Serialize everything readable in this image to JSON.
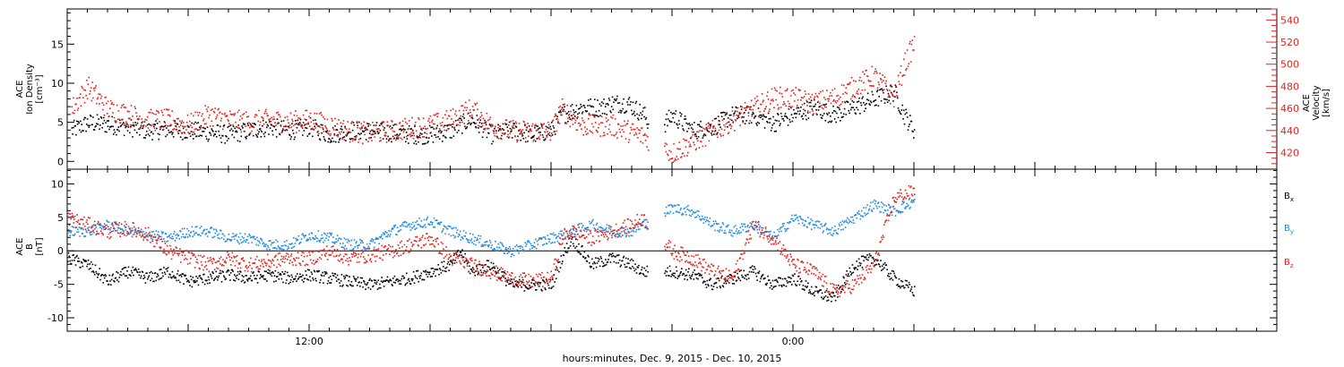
{
  "xlabel": "hours:minutes, Dec.  9, 2015 - Dec. 10, 2015",
  "colors": {
    "black": "#000000",
    "red": "#e8211c",
    "blue": "#1f8ae0"
  },
  "chart_data": [
    {
      "type": "scatter",
      "panel": "top",
      "ylabel_lines": [
        "ACE",
        "Ion Density",
        "[cm⁻³]"
      ],
      "ylabel_right_lines": [
        "ACE",
        "Velocity",
        "[km/s]"
      ],
      "x_tick_labels": [
        "12:00",
        "0:00"
      ],
      "ylim": [
        -1,
        19.5
      ],
      "ylim_right": [
        405,
        550
      ],
      "y_ticks": [
        0,
        5,
        10,
        15
      ],
      "y_ticks_right": [
        420,
        440,
        460,
        480,
        500,
        520,
        540
      ],
      "x_hours_range": [
        0,
        30
      ],
      "grid": false,
      "series": [
        {
          "color": "black",
          "axis": "left",
          "points": [
            [
              0.2,
              4
            ],
            [
              1,
              5
            ],
            [
              2,
              4.8
            ],
            [
              3,
              4.5
            ],
            [
              4,
              4
            ],
            [
              5,
              4.2
            ],
            [
              6,
              4
            ],
            [
              7,
              3.8
            ],
            [
              8,
              3.5
            ],
            [
              9,
              4
            ],
            [
              10,
              4.5
            ],
            [
              11,
              4
            ],
            [
              12,
              4.5
            ],
            [
              13,
              3.5
            ],
            [
              14,
              4
            ],
            [
              15,
              4
            ],
            [
              16,
              3.8
            ],
            [
              17,
              3.5
            ],
            [
              18,
              3.5
            ],
            [
              19,
              4
            ],
            [
              20,
              5.5
            ],
            [
              21,
              3.5
            ],
            [
              22,
              4
            ],
            [
              23,
              3.5
            ],
            [
              24,
              4
            ],
            [
              24.5,
              6
            ],
            [
              25.5,
              7
            ],
            [
              26.5,
              7
            ],
            [
              27,
              7.5
            ],
            [
              27.8,
              7.5
            ],
            [
              28.6,
              6
            ],
            [
              29,
              4
            ],
            [
              29.3,
              4
            ],
            [
              30,
              6
            ],
            [
              30.5,
              5
            ],
            [
              31,
              4
            ],
            [
              32,
              4.5
            ],
            [
              33,
              6
            ],
            [
              34,
              6
            ],
            [
              35,
              5
            ],
            [
              36,
              6
            ],
            [
              37,
              7
            ],
            [
              38,
              6
            ],
            [
              39,
              7
            ],
            [
              40,
              8
            ],
            [
              41,
              9
            ],
            [
              41.5,
              6
            ],
            [
              42,
              4
            ]
          ],
          "spread": 1.2
        },
        {
          "color": "red",
          "axis": "right",
          "points": [
            [
              0.2,
              460
            ],
            [
              1,
              480
            ],
            [
              2,
              460
            ],
            [
              3,
              455
            ],
            [
              4,
              450
            ],
            [
              5,
              450
            ],
            [
              6,
              445
            ],
            [
              7,
              455
            ],
            [
              8,
              450
            ],
            [
              9,
              448
            ],
            [
              10,
              450
            ],
            [
              11,
              448
            ],
            [
              12,
              450
            ],
            [
              13,
              445
            ],
            [
              14,
              440
            ],
            [
              15,
              438
            ],
            [
              16,
              440
            ],
            [
              17,
              443
            ],
            [
              18,
              445
            ],
            [
              19,
              450
            ],
            [
              20,
              460
            ],
            [
              21,
              445
            ],
            [
              22,
              440
            ],
            [
              23,
              440
            ],
            [
              24,
              440
            ],
            [
              24.5,
              460
            ],
            [
              25.5,
              445
            ],
            [
              26.5,
              445
            ],
            [
              27,
              445
            ],
            [
              27.8,
              440
            ],
            [
              28.6,
              435
            ],
            [
              29,
              430
            ],
            [
              30,
              420
            ],
            [
              31,
              430
            ],
            [
              32,
              440
            ],
            [
              33,
              450
            ],
            [
              34,
              460
            ],
            [
              35,
              470
            ],
            [
              36,
              470
            ],
            [
              37,
              465
            ],
            [
              38,
              470
            ],
            [
              39,
              480
            ],
            [
              40,
              490
            ],
            [
              41,
              470
            ],
            [
              41.5,
              500
            ],
            [
              42,
              520
            ]
          ],
          "spread": 10
        }
      ]
    },
    {
      "type": "scatter",
      "panel": "bottom",
      "ylabel_lines": [
        "ACE",
        "B",
        "[nT]"
      ],
      "ylim": [
        -12,
        12.2
      ],
      "y_ticks": [
        -10,
        -5,
        0,
        5,
        10
      ],
      "legend": [
        {
          "text": "B",
          "sub": "x",
          "color": "black"
        },
        {
          "text": "B",
          "sub": "y",
          "color": "blue"
        },
        {
          "text": "B",
          "sub": "z",
          "color": "red"
        }
      ],
      "series": [
        {
          "color": "black",
          "points": [
            [
              0,
              -1
            ],
            [
              1,
              -2
            ],
            [
              2,
              -4.5
            ],
            [
              3,
              -3
            ],
            [
              4,
              -4
            ],
            [
              5,
              -3
            ],
            [
              6,
              -4.5
            ],
            [
              7,
              -4
            ],
            [
              8,
              -3.5
            ],
            [
              9,
              -4
            ],
            [
              10,
              -3.5
            ],
            [
              11,
              -4
            ],
            [
              12,
              -3.5
            ],
            [
              13,
              -4
            ],
            [
              14,
              -4.5
            ],
            [
              15,
              -5
            ],
            [
              16,
              -4.5
            ],
            [
              17,
              -4
            ],
            [
              18,
              -3
            ],
            [
              19,
              -2
            ],
            [
              19.5,
              0
            ],
            [
              20,
              -3
            ],
            [
              21,
              -2
            ],
            [
              22,
              -5
            ],
            [
              23,
              -5
            ],
            [
              24,
              -5
            ],
            [
              24.5,
              -1
            ],
            [
              25,
              2
            ],
            [
              26,
              -2
            ],
            [
              27,
              -1
            ],
            [
              28,
              -2
            ],
            [
              28.5,
              -3
            ],
            [
              30,
              -3
            ],
            [
              31,
              -3.5
            ],
            [
              32,
              -5
            ],
            [
              33,
              -4
            ],
            [
              34,
              -3
            ],
            [
              35,
              -5
            ],
            [
              36,
              -4
            ],
            [
              37,
              -6
            ],
            [
              38,
              -7
            ],
            [
              39,
              -2
            ],
            [
              40,
              -1
            ],
            [
              41,
              -4
            ],
            [
              42,
              -6
            ]
          ],
          "spread": 0.9
        },
        {
          "color": "blue",
          "points": [
            [
              0,
              3
            ],
            [
              1,
              3
            ],
            [
              2,
              4
            ],
            [
              3,
              3
            ],
            [
              4,
              2.5
            ],
            [
              5,
              2
            ],
            [
              6,
              3
            ],
            [
              7,
              3
            ],
            [
              8,
              2
            ],
            [
              9,
              2
            ],
            [
              10,
              1
            ],
            [
              11,
              1
            ],
            [
              12,
              2.5
            ],
            [
              13,
              2
            ],
            [
              14,
              1
            ],
            [
              15,
              1
            ],
            [
              16,
              3
            ],
            [
              17,
              4
            ],
            [
              18,
              4.5
            ],
            [
              19,
              3
            ],
            [
              20,
              2
            ],
            [
              21,
              1
            ],
            [
              22,
              0
            ],
            [
              23,
              1
            ],
            [
              24,
              2
            ],
            [
              25,
              3
            ],
            [
              26,
              4
            ],
            [
              27,
              3
            ],
            [
              28,
              3
            ],
            [
              28.5,
              4
            ],
            [
              30,
              6.5
            ],
            [
              31,
              6
            ],
            [
              32,
              4
            ],
            [
              33,
              3
            ],
            [
              34,
              4
            ],
            [
              35,
              2
            ],
            [
              36,
              5
            ],
            [
              37,
              4
            ],
            [
              38,
              3
            ],
            [
              39,
              5
            ],
            [
              40,
              7
            ],
            [
              41,
              6
            ],
            [
              42,
              7.5
            ]
          ],
          "spread": 0.8
        },
        {
          "color": "red",
          "points": [
            [
              0,
              5
            ],
            [
              1,
              4
            ],
            [
              2,
              3
            ],
            [
              3,
              3.5
            ],
            [
              4,
              2.5
            ],
            [
              5,
              0
            ],
            [
              6,
              -1
            ],
            [
              7,
              -2
            ],
            [
              8,
              -1
            ],
            [
              9,
              -2
            ],
            [
              10,
              -1.5
            ],
            [
              11,
              -1
            ],
            [
              12,
              -1
            ],
            [
              13,
              0
            ],
            [
              14,
              -1
            ],
            [
              15,
              -0.5
            ],
            [
              16,
              0
            ],
            [
              17,
              1
            ],
            [
              18,
              2
            ],
            [
              19,
              -1
            ],
            [
              20,
              -2
            ],
            [
              21,
              -3
            ],
            [
              22,
              -4
            ],
            [
              23,
              -4.5
            ],
            [
              24,
              -4
            ],
            [
              24.5,
              2
            ],
            [
              25,
              3
            ],
            [
              26,
              2
            ],
            [
              27,
              3
            ],
            [
              28,
              4
            ],
            [
              28.5,
              5
            ],
            [
              30,
              0
            ],
            [
              31,
              -1
            ],
            [
              32,
              -3
            ],
            [
              33,
              -4
            ],
            [
              34,
              4
            ],
            [
              35,
              2
            ],
            [
              36,
              -2
            ],
            [
              37,
              -3
            ],
            [
              38,
              -6
            ],
            [
              39,
              -5
            ],
            [
              40,
              -2
            ],
            [
              41,
              8
            ],
            [
              42,
              9
            ]
          ],
          "spread": 1.1
        }
      ]
    }
  ]
}
